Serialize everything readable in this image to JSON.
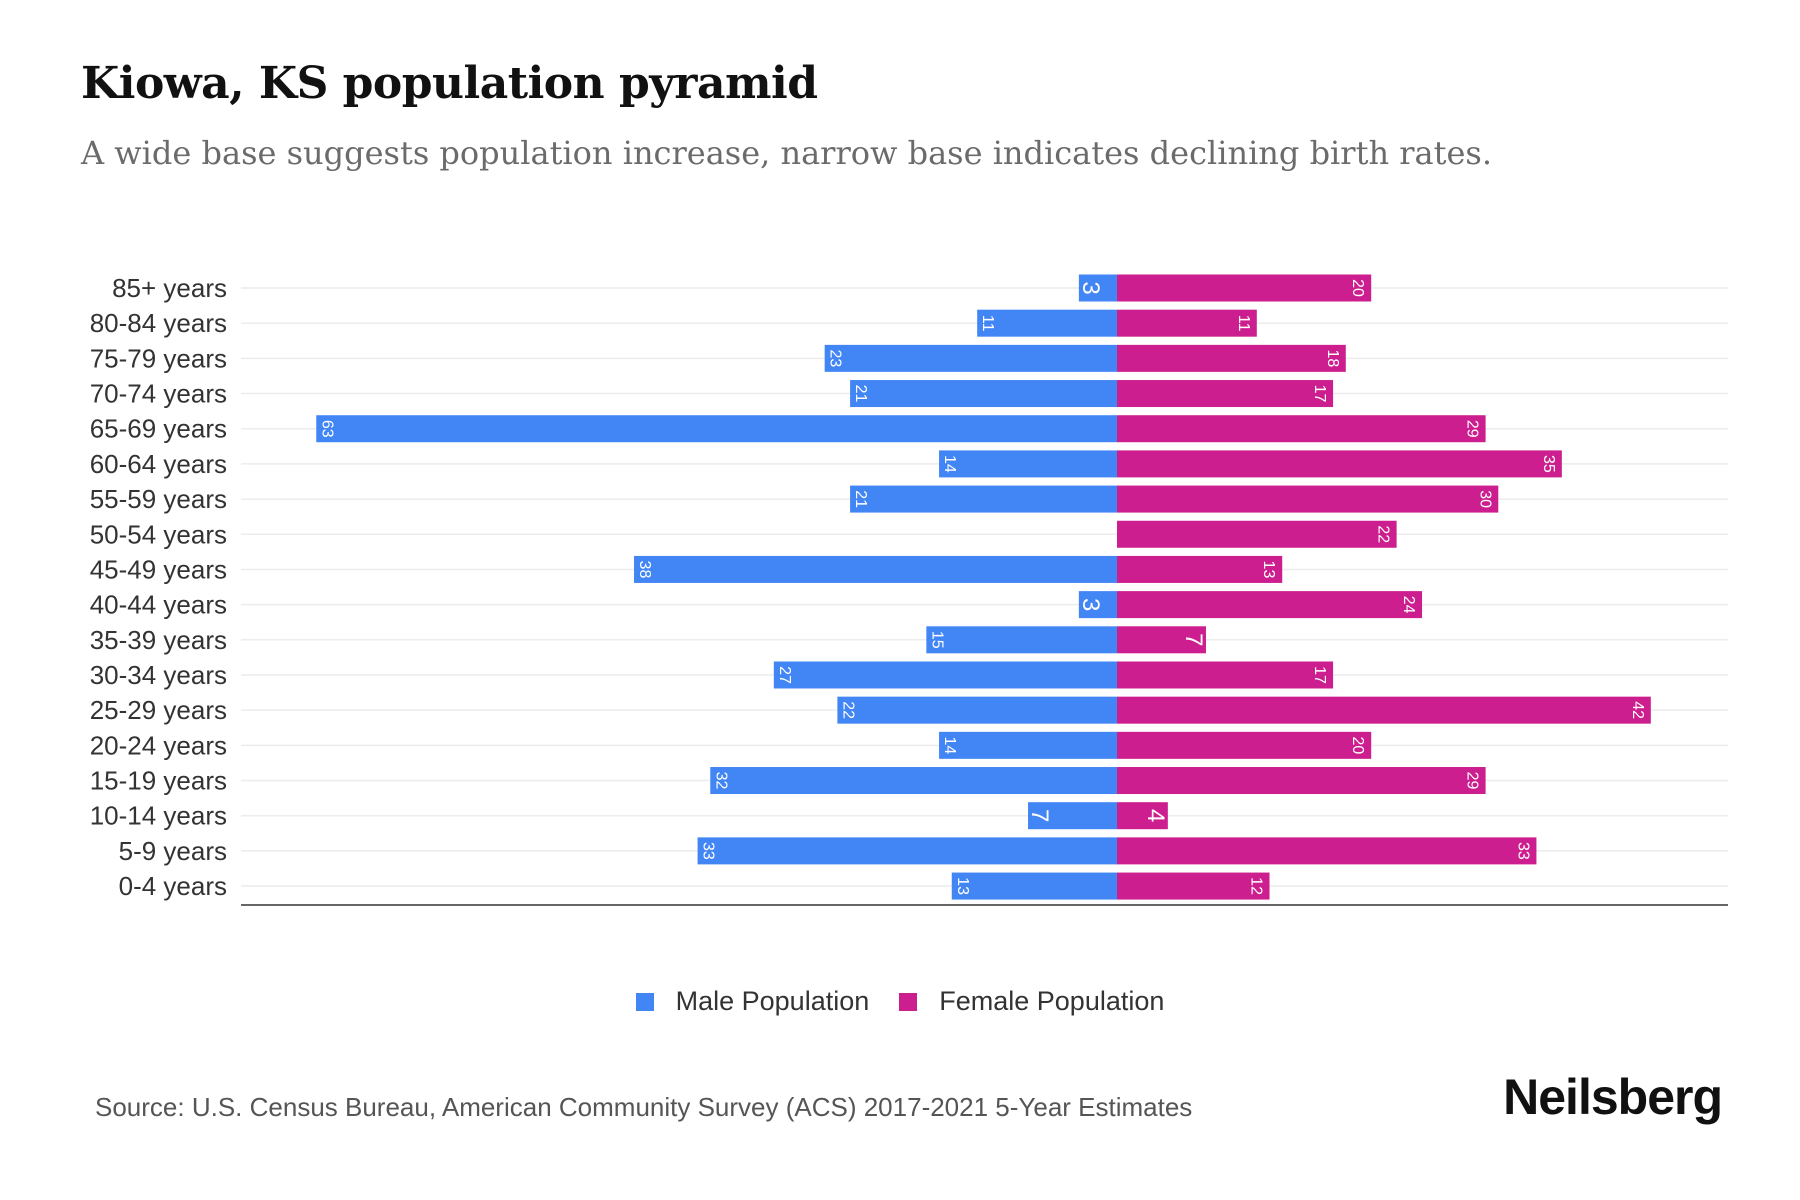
{
  "title": "Kiowa, KS population pyramid",
  "subtitle": "A wide base suggests population increase, narrow base indicates declining birth rates.",
  "source": "Source: U.S. Census Bureau, American Community Survey (ACS) 2017-2021 5-Year Estimates",
  "logo": "Neilsberg",
  "chart_data": {
    "type": "bar",
    "orientation": "horizontal-pyramid",
    "title": "Kiowa, KS population pyramid",
    "categories": [
      "85+ years",
      "80-84 years",
      "75-79 years",
      "70-74 years",
      "65-69 years",
      "60-64 years",
      "55-59 years",
      "50-54 years",
      "45-49 years",
      "40-44 years",
      "35-39 years",
      "30-34 years",
      "25-29 years",
      "20-24 years",
      "15-19 years",
      "10-14 years",
      "5-9 years",
      "0-4 years"
    ],
    "series": [
      {
        "name": "Male Population",
        "color": "#4285f4",
        "values": [
          3,
          11,
          23,
          21,
          63,
          14,
          21,
          0,
          38,
          3,
          15,
          27,
          22,
          14,
          32,
          7,
          33,
          13
        ]
      },
      {
        "name": "Female Population",
        "color": "#cc1e8e",
        "values": [
          20,
          11,
          18,
          17,
          29,
          35,
          30,
          22,
          13,
          24,
          7,
          17,
          42,
          20,
          29,
          4,
          33,
          12
        ]
      }
    ],
    "legend": "bottom-center",
    "grid": true
  }
}
